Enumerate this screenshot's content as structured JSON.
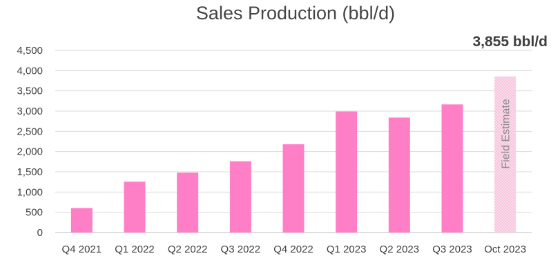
{
  "chart_data": {
    "type": "bar",
    "title": "Sales Production (bbl/d)",
    "callout": "3,855 bbl/d",
    "categories": [
      "Q4  2021",
      "Q1  2022",
      "Q2  2022",
      "Q3  2022",
      "Q4  2022",
      "Q1  2023",
      "Q2  2023",
      "Q3  2023",
      "Oct 2023"
    ],
    "values": [
      605,
      1255,
      1480,
      1760,
      2180,
      2990,
      2840,
      3165,
      3855
    ],
    "estimate_index": 8,
    "estimate_label": "Field Estimate",
    "ylim": [
      0,
      4500
    ],
    "yticks": [
      "0",
      "500",
      "1,000",
      "1,500",
      "2,000",
      "2,500",
      "3,000",
      "3,500",
      "4,000",
      "4,500"
    ],
    "ytick_values": [
      0,
      500,
      1000,
      1500,
      2000,
      2500,
      3000,
      3500,
      4000,
      4500
    ],
    "grid": true,
    "colors": {
      "bar": "#ff7fc7",
      "estimate_fill": "#f9dbea",
      "estimate_pattern": "#f3a6cc"
    }
  }
}
